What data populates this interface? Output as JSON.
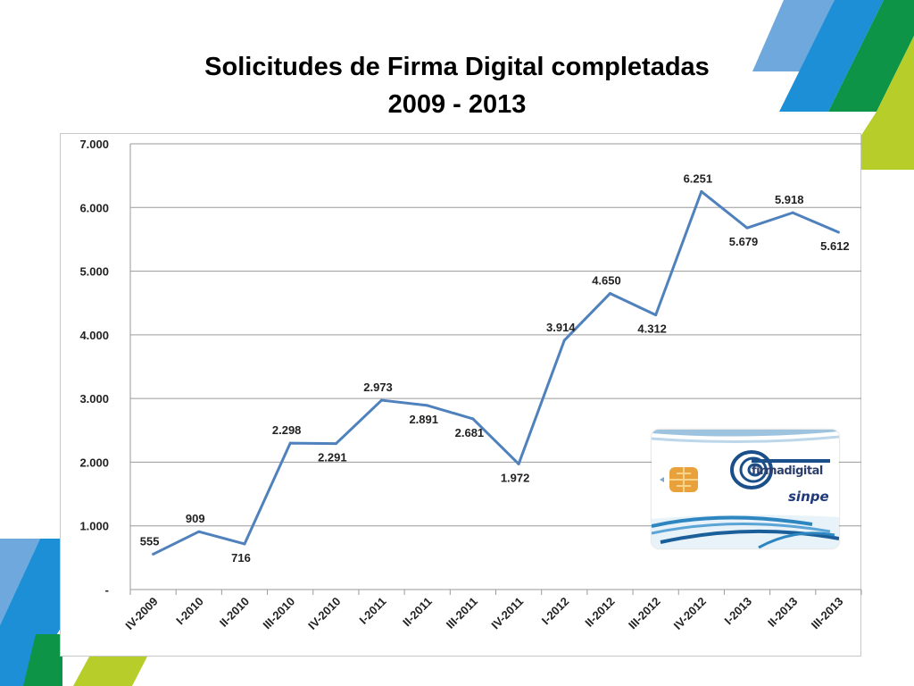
{
  "title_line1": "Solicitudes de Firma Digital completadas",
  "title_line2": "2009 - 2013",
  "card": {
    "brand": "firmadigital",
    "issuer": "sinpe"
  },
  "colors": {
    "line": "#4f81bd",
    "grid": "#8c8c8c",
    "deco_light_blue": "#6fa8dc",
    "deco_blue": "#1c8fd6",
    "deco_green": "#0d9447",
    "deco_lime": "#b7cd2a"
  },
  "chart_data": {
    "type": "line",
    "title": "Solicitudes de Firma Digital completadas 2009 - 2013",
    "xlabel": "",
    "ylabel": "",
    "ylim": [
      0,
      7000
    ],
    "yticks": [
      "-",
      "1.000",
      "2.000",
      "3.000",
      "4.000",
      "5.000",
      "6.000",
      "7.000"
    ],
    "grid": true,
    "categories": [
      "IV-2009",
      "I-2010",
      "II-2010",
      "III-2010",
      "IV-2010",
      "I-2011",
      "II-2011",
      "III-2011",
      "IV-2011",
      "I-2012",
      "II-2012",
      "III-2012",
      "IV-2012",
      "I-2013",
      "II-2013",
      "III-2013"
    ],
    "values": [
      555,
      909,
      716,
      2298,
      2291,
      2973,
      2891,
      2681,
      1972,
      3914,
      4650,
      4312,
      6251,
      5679,
      5918,
      5612
    ],
    "labels": [
      "555",
      "909",
      "716",
      "2.298",
      "2.291",
      "2.973",
      "2.891",
      "2.681",
      "1.972",
      "3.914",
      "4.650",
      "4.312",
      "6.251",
      "5.679",
      "5.918",
      "5.612"
    ]
  }
}
